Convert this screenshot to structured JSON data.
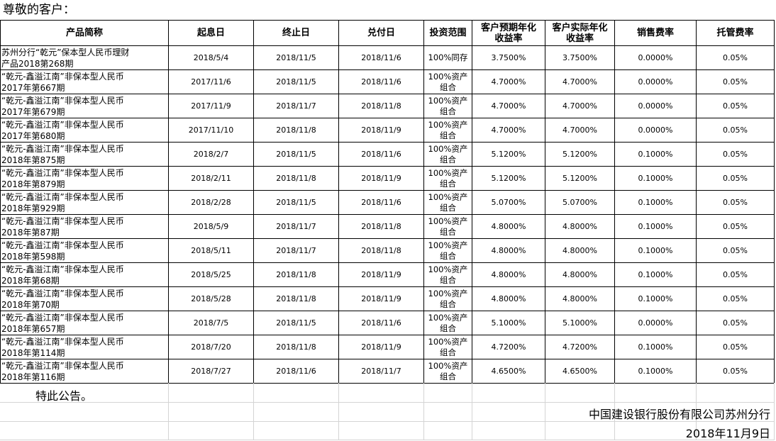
{
  "greeting": "尊敬的客户：",
  "headers": {
    "name": "产品简称",
    "start": "起息日",
    "end": "终止日",
    "pay": "兑付日",
    "scope": "投资范围",
    "expected": [
      "客户预期年化",
      "收益率"
    ],
    "actual": [
      "客户实际年化",
      "收益率"
    ],
    "sales_fee": "销售费率",
    "custody_fee": "托管费率"
  },
  "rows": [
    {
      "name": [
        "苏州分行“乾元”保本型人民币理财",
        "产品2018第268期"
      ],
      "start": "2018/5/4",
      "end": "2018/11/5",
      "pay": "2018/11/6",
      "scope": [
        "100%同存"
      ],
      "expected": "3.7500%",
      "actual": "3.7500%",
      "sales_fee": "0.0000%",
      "custody_fee": "0.05%"
    },
    {
      "name": [
        "“乾元-鑫溢江南”非保本型人民币",
        "2017年第667期"
      ],
      "start": "2017/11/6",
      "end": "2018/11/5",
      "pay": "2018/11/6",
      "scope": [
        "100%资产",
        "组合"
      ],
      "expected": "4.7000%",
      "actual": "4.7000%",
      "sales_fee": "0.0000%",
      "custody_fee": "0.05%"
    },
    {
      "name": [
        "“乾元-鑫溢江南”非保本型人民币",
        "2017年第679期"
      ],
      "start": "2017/11/9",
      "end": "2018/11/7",
      "pay": "2018/11/8",
      "scope": [
        "100%资产",
        "组合"
      ],
      "expected": "4.7000%",
      "actual": "4.7000%",
      "sales_fee": "0.0000%",
      "custody_fee": "0.05%"
    },
    {
      "name": [
        "“乾元-鑫溢江南”非保本型人民币",
        "2017年第680期"
      ],
      "start": "2017/11/10",
      "end": "2018/11/8",
      "pay": "2018/11/9",
      "scope": [
        "100%资产",
        "组合"
      ],
      "expected": "4.7000%",
      "actual": "4.7000%",
      "sales_fee": "0.0000%",
      "custody_fee": "0.05%"
    },
    {
      "name": [
        "“乾元-鑫溢江南”非保本型人民币",
        "2018年第875期"
      ],
      "start": "2018/2/7",
      "end": "2018/11/5",
      "pay": "2018/11/6",
      "scope": [
        "100%资产",
        "组合"
      ],
      "expected": "5.1200%",
      "actual": "5.1200%",
      "sales_fee": "0.1000%",
      "custody_fee": "0.05%"
    },
    {
      "name": [
        "“乾元-鑫溢江南”非保本型人民币",
        "2018年第879期"
      ],
      "start": "2018/2/11",
      "end": "2018/11/8",
      "pay": "2018/11/9",
      "scope": [
        "100%资产",
        "组合"
      ],
      "expected": "5.1200%",
      "actual": "5.1200%",
      "sales_fee": "0.1000%",
      "custody_fee": "0.05%"
    },
    {
      "name": [
        "“乾元-鑫溢江南”非保本型人民币",
        "2018年第929期"
      ],
      "start": "2018/2/28",
      "end": "2018/11/5",
      "pay": "2018/11/6",
      "scope": [
        "100%资产",
        "组合"
      ],
      "expected": "5.0700%",
      "actual": "5.0700%",
      "sales_fee": "0.1000%",
      "custody_fee": "0.05%"
    },
    {
      "name": [
        "“乾元-鑫溢江南”非保本型人民币",
        "2018年第87期"
      ],
      "start": "2018/5/9",
      "end": "2018/11/7",
      "pay": "2018/11/8",
      "scope": [
        "100%资产",
        "组合"
      ],
      "expected": "4.8000%",
      "actual": "4.8000%",
      "sales_fee": "0.1000%",
      "custody_fee": "0.05%"
    },
    {
      "name": [
        "“乾元-鑫溢江南”非保本型人民币",
        "2018年第598期"
      ],
      "start": "2018/5/11",
      "end": "2018/11/7",
      "pay": "2018/11/8",
      "scope": [
        "100%资产",
        "组合"
      ],
      "expected": "4.8000%",
      "actual": "4.8000%",
      "sales_fee": "0.1000%",
      "custody_fee": "0.05%"
    },
    {
      "name": [
        "“乾元-鑫溢江南”非保本型人民币",
        "2018年第68期"
      ],
      "start": "2018/5/25",
      "end": "2018/11/8",
      "pay": "2018/11/9",
      "scope": [
        "100%资产",
        "组合"
      ],
      "expected": "4.8000%",
      "actual": "4.8000%",
      "sales_fee": "0.1000%",
      "custody_fee": "0.05%"
    },
    {
      "name": [
        "“乾元-鑫溢江南”非保本型人民币",
        "2018年第70期"
      ],
      "start": "2018/5/28",
      "end": "2018/11/8",
      "pay": "2018/11/9",
      "scope": [
        "100%资产",
        "组合"
      ],
      "expected": "4.8000%",
      "actual": "4.8000%",
      "sales_fee": "0.1000%",
      "custody_fee": "0.05%"
    },
    {
      "name": [
        "“乾元-鑫溢江南”非保本型人民币",
        "2018年第657期"
      ],
      "start": "2018/7/5",
      "end": "2018/11/5",
      "pay": "2018/11/6",
      "scope": [
        "100%资产",
        "组合"
      ],
      "expected": "5.1000%",
      "actual": "5.1000%",
      "sales_fee": "0.0000%",
      "custody_fee": "0.05%"
    },
    {
      "name": [
        "“乾元-鑫溢江南”非保本型人民币",
        "2018年第114期"
      ],
      "start": "2018/7/20",
      "end": "2018/11/8",
      "pay": "2018/11/9",
      "scope": [
        "100%资产",
        "组合"
      ],
      "expected": "4.7200%",
      "actual": "4.7200%",
      "sales_fee": "0.1000%",
      "custody_fee": "0.05%"
    },
    {
      "name": [
        "“乾元-鑫溢江南”非保本型人民币",
        "2018年第116期"
      ],
      "start": "2018/7/27",
      "end": "2018/11/6",
      "pay": "2018/11/7",
      "scope": [
        "100%资产",
        "组合"
      ],
      "expected": "4.6500%",
      "actual": "4.6500%",
      "sales_fee": "0.1000%",
      "custody_fee": "0.05%"
    }
  ],
  "notice": "特此公告。",
  "bank": "中国建设银行股份有限公司苏州分行",
  "date": "2018年11月9日"
}
